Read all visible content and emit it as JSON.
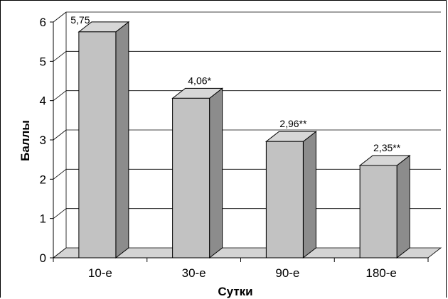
{
  "chart_data": {
    "type": "bar",
    "categories": [
      "10-е",
      "30-е",
      "90-е",
      "180-е"
    ],
    "values": [
      5.75,
      4.06,
      2.96,
      2.35
    ],
    "data_labels": [
      "5,75",
      "4,06*",
      "2,96**",
      "2,35**"
    ],
    "xlabel": "Сутки",
    "ylabel": "Баллы",
    "ylim": [
      0,
      6
    ],
    "yticks": [
      "0",
      "1",
      "2",
      "3",
      "4",
      "5",
      "6"
    ],
    "grid": true,
    "style": "3d",
    "colors": {
      "bar_front": "#c2c2c2",
      "bar_side": "#8c8c8c",
      "bar_top": "#d7d7d7",
      "floor": "#d4d4d4"
    }
  }
}
